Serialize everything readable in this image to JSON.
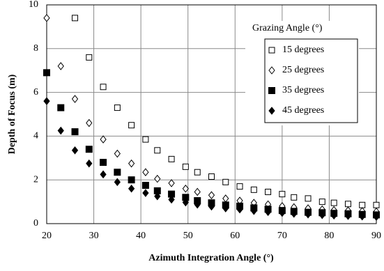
{
  "chart_data": {
    "type": "scatter",
    "x_label": "Azimuth Integration Angle (°)",
    "y_label": "Depth of Focus (m)",
    "legend_title": "Grazing Angle (°)",
    "x": [
      20,
      23,
      26,
      29,
      32,
      35,
      38,
      41,
      43.5,
      46.5,
      49.5,
      52,
      55,
      58,
      61,
      64,
      67,
      70,
      72.5,
      75.5,
      78.5,
      81,
      84,
      87,
      90
    ],
    "series": [
      {
        "name": "15 degrees",
        "color": "#000000",
        "marker": "square-open",
        "values": [
          null,
          null,
          9.4,
          7.6,
          6.25,
          5.3,
          4.5,
          3.85,
          3.35,
          2.95,
          2.6,
          2.35,
          2.15,
          1.9,
          1.7,
          1.55,
          1.45,
          1.35,
          1.2,
          1.15,
          1.0,
          0.95,
          0.9,
          0.85,
          0.85
        ]
      },
      {
        "name": "25 degrees",
        "color": "#000000",
        "marker": "diamond-open",
        "values": [
          9.4,
          7.2,
          5.7,
          4.6,
          3.85,
          3.2,
          2.75,
          2.35,
          2.05,
          1.85,
          1.6,
          1.45,
          1.3,
          1.15,
          1.05,
          0.95,
          0.88,
          0.8,
          0.75,
          0.7,
          0.65,
          0.62,
          0.6,
          0.57,
          0.55
        ]
      },
      {
        "name": "35 degrees",
        "color": "#000000",
        "marker": "square-filled",
        "values": [
          6.9,
          5.3,
          4.2,
          3.4,
          2.8,
          2.35,
          2.0,
          1.75,
          1.5,
          1.35,
          1.2,
          1.05,
          0.95,
          0.85,
          0.8,
          0.72,
          0.66,
          0.6,
          0.56,
          0.52,
          0.5,
          0.47,
          0.45,
          0.42,
          0.4
        ]
      },
      {
        "name": "45 degrees",
        "color": "#000000",
        "marker": "diamond-filled",
        "values": [
          5.6,
          4.25,
          3.35,
          2.75,
          2.25,
          1.9,
          1.6,
          1.4,
          1.25,
          1.1,
          0.97,
          0.87,
          0.78,
          0.7,
          0.65,
          0.58,
          0.53,
          0.49,
          0.45,
          0.42,
          0.39,
          0.37,
          0.35,
          0.33,
          0.31
        ]
      }
    ],
    "xlim": [
      20,
      90
    ],
    "xticks": [
      20,
      30,
      40,
      50,
      60,
      70,
      80,
      90
    ],
    "ylim": [
      0,
      10
    ],
    "yticks": [
      0,
      2,
      4,
      6,
      8,
      10
    ],
    "grid": true,
    "legend": "upper right"
  }
}
